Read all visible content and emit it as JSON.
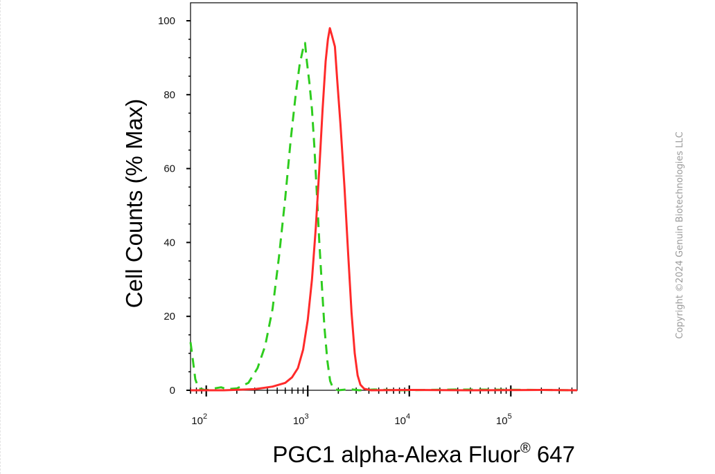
{
  "chart_data": {
    "type": "line",
    "title": "",
    "xlabel": "PGC1 alpha-Alexa Fluor",
    "xlabel_mark": "®",
    "xlabel_suffix": " 647",
    "ylabel": "Cell Counts (% Max)",
    "xscale": "log",
    "xlim": [
      70,
      450000
    ],
    "ylim": [
      0,
      100
    ],
    "y_ticks": [
      0,
      20,
      40,
      60,
      80,
      100
    ],
    "y_tick_labels": [
      "0",
      "20",
      "40",
      "60",
      "80",
      "100"
    ],
    "x_ticks": [
      100,
      1000,
      10000,
      100000
    ],
    "x_tick_labels": [
      {
        "base": "10",
        "exp": "2"
      },
      {
        "base": "10",
        "exp": "3"
      },
      {
        "base": "10",
        "exp": "4"
      },
      {
        "base": "10",
        "exp": "5"
      }
    ],
    "grid": false,
    "legend": "none",
    "series": [
      {
        "color": "#2ecc1e",
        "style": "dashed",
        "points": [
          [
            70,
            13
          ],
          [
            74,
            8
          ],
          [
            78,
            3
          ],
          [
            84,
            0.5
          ],
          [
            100,
            0
          ],
          [
            120,
            0.5
          ],
          [
            140,
            0.8
          ],
          [
            160,
            0.3
          ],
          [
            200,
            0.5
          ],
          [
            260,
            2
          ],
          [
            320,
            6
          ],
          [
            380,
            12
          ],
          [
            450,
            22
          ],
          [
            520,
            36
          ],
          [
            600,
            52
          ],
          [
            680,
            68
          ],
          [
            760,
            80
          ],
          [
            830,
            88
          ],
          [
            900,
            92.5
          ],
          [
            940,
            94
          ],
          [
            980,
            89
          ],
          [
            1040,
            83
          ],
          [
            1100,
            76
          ],
          [
            1160,
            66
          ],
          [
            1230,
            53
          ],
          [
            1300,
            40
          ],
          [
            1380,
            28
          ],
          [
            1460,
            17
          ],
          [
            1560,
            8
          ],
          [
            1660,
            2.5
          ],
          [
            1780,
            0.5
          ],
          [
            2000,
            0
          ],
          [
            2600,
            0.3
          ],
          [
            3200,
            0
          ],
          [
            4500,
            0.2
          ],
          [
            8000,
            0
          ],
          [
            30000,
            0.2
          ],
          [
            200000,
            0.1
          ],
          [
            450000,
            0
          ]
        ]
      },
      {
        "color": "#ff2a2a",
        "style": "solid",
        "points": [
          [
            70,
            0
          ],
          [
            150,
            0
          ],
          [
            300,
            0.3
          ],
          [
            450,
            1
          ],
          [
            600,
            2
          ],
          [
            700,
            3.5
          ],
          [
            800,
            6
          ],
          [
            900,
            11
          ],
          [
            1000,
            19
          ],
          [
            1100,
            30
          ],
          [
            1200,
            44
          ],
          [
            1300,
            60
          ],
          [
            1400,
            76
          ],
          [
            1500,
            89
          ],
          [
            1580,
            95
          ],
          [
            1650,
            98
          ],
          [
            1730,
            96
          ],
          [
            1850,
            93
          ],
          [
            1950,
            84
          ],
          [
            2100,
            72
          ],
          [
            2300,
            55
          ],
          [
            2500,
            37
          ],
          [
            2700,
            21
          ],
          [
            2900,
            10
          ],
          [
            3100,
            4
          ],
          [
            3300,
            1.5
          ],
          [
            3600,
            0.4
          ],
          [
            4200,
            0
          ],
          [
            10000,
            0.1
          ],
          [
            40000,
            0
          ],
          [
            200000,
            0.1
          ],
          [
            450000,
            0
          ]
        ]
      }
    ]
  },
  "copyright": "Copyright ©2024 Genuin Biotechnologies LLC"
}
